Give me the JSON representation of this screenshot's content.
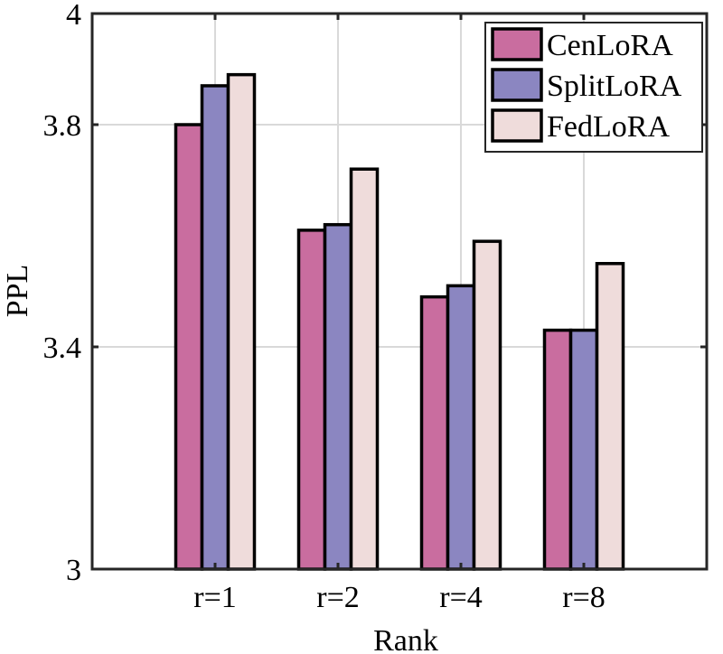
{
  "chart_data": {
    "type": "bar",
    "title": "",
    "xlabel": "Rank",
    "ylabel": "PPL",
    "categories": [
      "r=1",
      "r=2",
      "r=4",
      "r=8"
    ],
    "series": [
      {
        "name": "CenLoRA",
        "color": "#c96d9f",
        "values": [
          3.8,
          3.61,
          3.49,
          3.43
        ]
      },
      {
        "name": "SplitLoRA",
        "color": "#8b86c1",
        "values": [
          3.87,
          3.62,
          3.51,
          3.43
        ]
      },
      {
        "name": "FedLoRA",
        "color": "#efdcdb",
        "values": [
          3.89,
          3.72,
          3.59,
          3.55
        ]
      }
    ],
    "ylim": [
      3,
      4
    ],
    "yticks": [
      3,
      3.4,
      3.8,
      4
    ],
    "ytick_labels": [
      "3",
      "3.4",
      "3.8",
      "4"
    ],
    "grid": true,
    "legend_position": "top-right"
  }
}
